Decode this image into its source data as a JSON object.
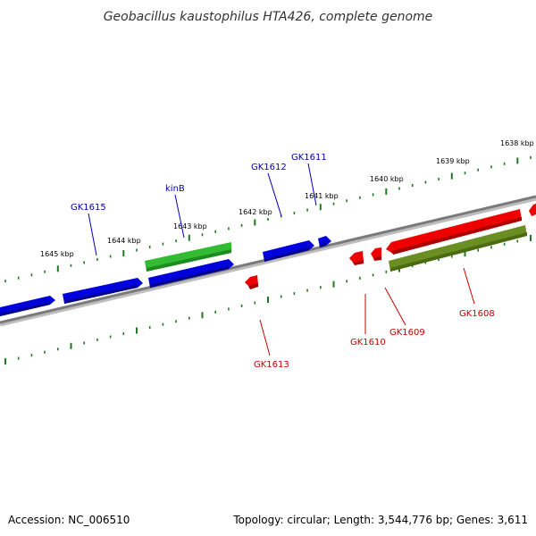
{
  "title": "Geobacillus kaustophilus HTA426, complete genome",
  "footer": {
    "accession": "Accession: NC_006510",
    "topology": "Topology: circular; Length: 3,544,776 bp; Genes: 3,611"
  },
  "colors": {
    "backbone": "#808080",
    "backbone_shadow": "#bdbdbd",
    "ticks": "#1e7a1e",
    "forward_gene": "#0000ee",
    "reverse_gene": "#ee0000",
    "rna_gene": "#33bb33",
    "pseudo_gene": "#6b8e23",
    "forward_label": "#0000aa",
    "reverse_label": "#cc0000"
  },
  "scale_ticks": [
    {
      "label": "1638 kbp"
    },
    {
      "label": "1639 kbp"
    },
    {
      "label": "1640 kbp"
    },
    {
      "label": "1641 kbp"
    },
    {
      "label": "1642 kbp"
    },
    {
      "label": "1643 kbp"
    },
    {
      "label": "1644 kbp"
    },
    {
      "label": "1645 kbp"
    }
  ],
  "gene_labels": [
    {
      "name": "GK1615",
      "strand": "forward"
    },
    {
      "name": "kinB",
      "strand": "forward"
    },
    {
      "name": "GK1612",
      "strand": "forward"
    },
    {
      "name": "GK1611",
      "strand": "forward"
    },
    {
      "name": "GK1613",
      "strand": "reverse"
    },
    {
      "name": "GK1610",
      "strand": "reverse"
    },
    {
      "name": "GK1609",
      "strand": "reverse"
    },
    {
      "name": "GK1608",
      "strand": "reverse"
    }
  ]
}
